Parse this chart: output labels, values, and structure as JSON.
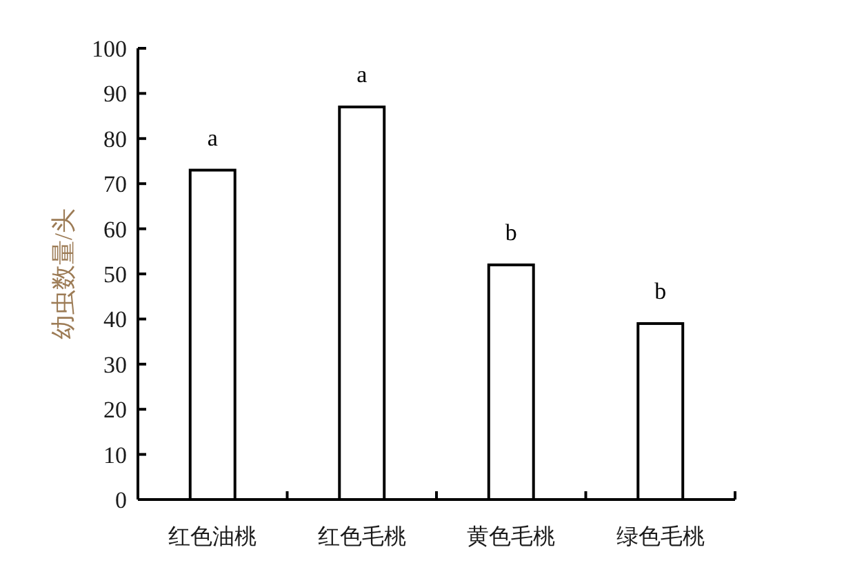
{
  "chart_data": {
    "type": "bar",
    "ylabel": "幼虫数量/头",
    "categories": [
      "红色油桃",
      "红色毛桃",
      "黄色毛桃",
      "绿色毛桃"
    ],
    "values": [
      73,
      87,
      52,
      39
    ],
    "color": "#ffffff",
    "ylim": [
      0,
      100
    ],
    "yticks": [
      0,
      10,
      20,
      30,
      40,
      50,
      60,
      70,
      80,
      90,
      100
    ],
    "annotations": [
      {
        "text": "a",
        "x": "红色油桃",
        "y": 73
      },
      {
        "text": "a",
        "x": "红色毛桃",
        "y": 87
      },
      {
        "text": "b",
        "x": "黄色毛桃",
        "y": 52
      },
      {
        "text": "b",
        "x": "绿色毛桃",
        "y": 39
      }
    ]
  }
}
